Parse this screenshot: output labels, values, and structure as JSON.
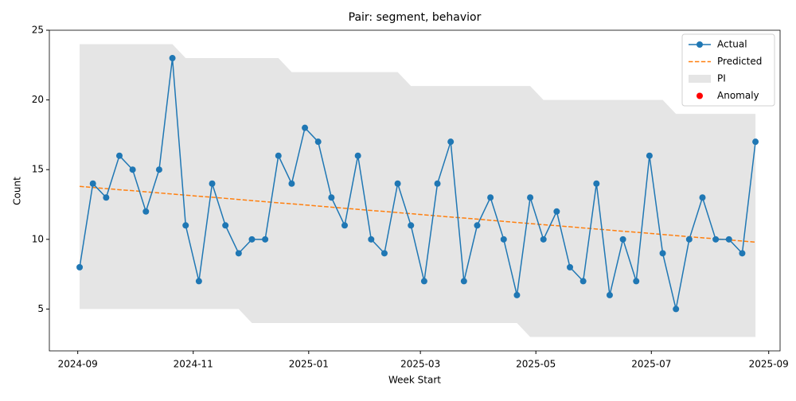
{
  "chart_data": {
    "type": "line",
    "title": "Pair: segment, behavior",
    "xlabel": "Week Start",
    "ylabel": "Count",
    "x": [
      "2024-09-02",
      "2024-09-09",
      "2024-09-16",
      "2024-09-23",
      "2024-09-30",
      "2024-10-07",
      "2024-10-14",
      "2024-10-21",
      "2024-10-28",
      "2024-11-04",
      "2024-11-11",
      "2024-11-18",
      "2024-11-25",
      "2024-12-02",
      "2024-12-09",
      "2024-12-16",
      "2024-12-23",
      "2024-12-30",
      "2025-01-06",
      "2025-01-13",
      "2025-01-20",
      "2025-01-27",
      "2025-02-03",
      "2025-02-10",
      "2025-02-17",
      "2025-02-24",
      "2025-03-03",
      "2025-03-10",
      "2025-03-17",
      "2025-03-24",
      "2025-03-31",
      "2025-04-07",
      "2025-04-14",
      "2025-04-21",
      "2025-04-28",
      "2025-05-05",
      "2025-05-12",
      "2025-05-19",
      "2025-05-26",
      "2025-06-02",
      "2025-06-09",
      "2025-06-16",
      "2025-06-23",
      "2025-06-30",
      "2025-07-07",
      "2025-07-14",
      "2025-07-21",
      "2025-07-28",
      "2025-08-04",
      "2025-08-11",
      "2025-08-18",
      "2025-08-25"
    ],
    "series": [
      {
        "name": "Actual",
        "color": "#1f77b4",
        "values": [
          8,
          14,
          13,
          16,
          15,
          12,
          15,
          23,
          11,
          7,
          14,
          11,
          9,
          10,
          10,
          16,
          14,
          18,
          17,
          13,
          11,
          16,
          10,
          9,
          14,
          11,
          7,
          14,
          17,
          7,
          11,
          13,
          10,
          6,
          13,
          10,
          12,
          8,
          7,
          14,
          6,
          10,
          7,
          16,
          9,
          5,
          10,
          13,
          10,
          10,
          9,
          17
        ]
      },
      {
        "name": "Predicted",
        "color": "#ff7f0e",
        "values": [
          13.8,
          13.72,
          13.64,
          13.56,
          13.49,
          13.41,
          13.33,
          13.25,
          13.17,
          13.09,
          13.02,
          12.94,
          12.86,
          12.78,
          12.7,
          12.62,
          12.55,
          12.47,
          12.39,
          12.31,
          12.23,
          12.15,
          12.07,
          12.0,
          11.92,
          11.84,
          11.76,
          11.68,
          11.6,
          11.53,
          11.45,
          11.37,
          11.29,
          11.21,
          11.13,
          11.05,
          10.98,
          10.9,
          10.82,
          10.74,
          10.66,
          10.58,
          10.51,
          10.43,
          10.35,
          10.27,
          10.19,
          10.11,
          10.04,
          9.96,
          9.88,
          9.8
        ]
      }
    ],
    "interval": {
      "name": "PI",
      "color": "#e5e5e5",
      "upper": [
        24,
        24,
        24,
        24,
        24,
        24,
        24,
        24,
        23,
        23,
        23,
        23,
        23,
        23,
        23,
        23,
        22,
        22,
        22,
        22,
        22,
        22,
        22,
        22,
        22,
        21,
        21,
        21,
        21,
        21,
        21,
        21,
        21,
        21,
        21,
        20,
        20,
        20,
        20,
        20,
        20,
        20,
        20,
        20,
        20,
        19,
        19,
        19,
        19,
        19,
        19,
        19
      ],
      "lower": [
        5,
        5,
        5,
        5,
        5,
        5,
        5,
        5,
        5,
        5,
        5,
        5,
        5,
        4,
        4,
        4,
        4,
        4,
        4,
        4,
        4,
        4,
        4,
        4,
        4,
        4,
        4,
        4,
        4,
        4,
        4,
        4,
        4,
        4,
        3,
        3,
        3,
        3,
        3,
        3,
        3,
        3,
        3,
        3,
        3,
        3,
        3,
        3,
        3,
        3,
        3,
        3
      ]
    },
    "anomaly": {
      "name": "Anomaly",
      "color": "#ff0000",
      "values": []
    },
    "xlim": [
      "2024-08-17",
      "2025-09-07"
    ],
    "xticks": [
      {
        "value": "2024-09-01",
        "label": "2024-09"
      },
      {
        "value": "2024-11-01",
        "label": "2024-11"
      },
      {
        "value": "2025-01-01",
        "label": "2025-01"
      },
      {
        "value": "2025-03-01",
        "label": "2025-03"
      },
      {
        "value": "2025-05-01",
        "label": "2025-05"
      },
      {
        "value": "2025-07-01",
        "label": "2025-07"
      },
      {
        "value": "2025-09-01",
        "label": "2025-09"
      }
    ],
    "ylim": [
      2,
      25
    ],
    "yticks": [
      5,
      10,
      15,
      20,
      25
    ],
    "grid": false,
    "legend": "upper right"
  }
}
